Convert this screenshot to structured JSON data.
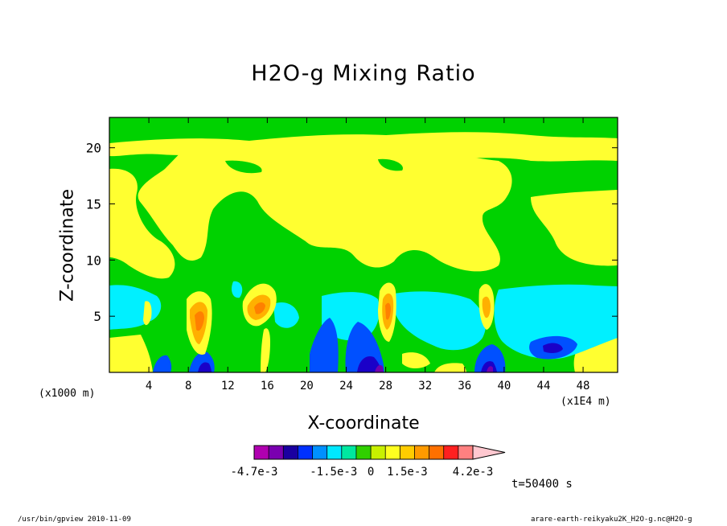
{
  "chart_data": {
    "type": "heatmap",
    "title": "H2O-g Mixing Ratio",
    "xlabel": "X-coordinate",
    "ylabel": "Z-coordinate",
    "x_unit_note": "(x1000 m)",
    "x_scale_note": "(x1E4 m)",
    "xlim": [
      0,
      51.5
    ],
    "ylim": [
      0,
      22.7
    ],
    "x_ticks": [
      4,
      8,
      12,
      16,
      20,
      24,
      28,
      32,
      36,
      40,
      44,
      48
    ],
    "y_ticks": [
      5,
      10,
      15,
      20
    ],
    "time_label": "t=50400 s",
    "colorbar": {
      "colors": [
        "#b000b0",
        "#7a00b0",
        "#1a00a0",
        "#0030ff",
        "#0090ff",
        "#00e8ff",
        "#00e8a0",
        "#30d000",
        "#c8f000",
        "#ffff20",
        "#ffcc00",
        "#ff9a00",
        "#ff7000",
        "#ff2020",
        "#ff8080",
        "#ffc8d0"
      ],
      "tick_labels": [
        "-4.7e-3",
        "-1.5e-3",
        "0",
        "1.5e-3",
        "4.2e-3"
      ],
      "tick_values": [
        -0.0047,
        -0.0015,
        0,
        0.0015,
        0.0042
      ]
    },
    "contour_fill_levels": [
      {
        "name": "green",
        "color": "#00d200"
      },
      {
        "name": "yellow",
        "color": "#ffff30"
      },
      {
        "name": "cyan",
        "color": "#00f0ff"
      },
      {
        "name": "blue",
        "color": "#0050ff"
      },
      {
        "name": "dark-blue",
        "color": "#1a00c8"
      },
      {
        "name": "navy",
        "color": "#1800a0"
      },
      {
        "name": "purple",
        "color": "#7000b0"
      },
      {
        "name": "orange",
        "color": "#ffb000"
      },
      {
        "name": "dark-orange",
        "color": "#ff8000"
      }
    ],
    "grid": false
  },
  "footer": {
    "left": "/usr/bin/gpview   2010-11-09",
    "right": "arare-earth-reikyaku2K_H2O-g.nc@H2O-g"
  }
}
